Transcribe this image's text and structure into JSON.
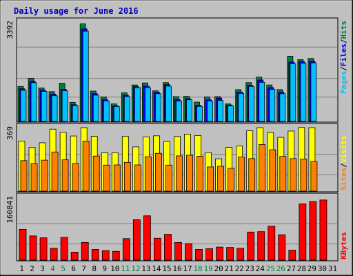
{
  "title": "Daily usage for June 2016",
  "colors": {
    "hits": "#008040",
    "files": "#0000ff",
    "pages": "#00c0ff",
    "visits": "#ffff00",
    "sites": "#ff8000",
    "kbytes": "#ff0000",
    "title": "#0000c0",
    "day_weekday": "#000000",
    "day_weekend": "#008040",
    "separator": "#000000"
  },
  "chart_data": [
    {
      "type": "bar",
      "panel": "hits-files-pages",
      "ymax_label": "3392",
      "ylim": [
        0,
        3392
      ],
      "legend": [
        "Pages",
        "Files",
        "Hits"
      ],
      "categories": [
        "1",
        "2",
        "3",
        "4",
        "5",
        "6",
        "7",
        "8",
        "9",
        "10",
        "11",
        "12",
        "13",
        "14",
        "15",
        "16",
        "17",
        "18",
        "19",
        "20",
        "21",
        "22",
        "23",
        "24",
        "25",
        "26",
        "27",
        "28",
        "29",
        "30",
        "31"
      ],
      "series": [
        {
          "name": "Hits",
          "values": [
            1180,
            1460,
            1130,
            1000,
            1290,
            630,
            3330,
            1020,
            820,
            580,
            960,
            1230,
            1300,
            1030,
            1310,
            830,
            840,
            640,
            820,
            830,
            580,
            1070,
            1310,
            1500,
            1230,
            1070,
            2220,
            2100,
            2140,
            0,
            0
          ]
        },
        {
          "name": "Files",
          "values": [
            1100,
            1360,
            1050,
            920,
            1080,
            550,
            3160,
            930,
            730,
            520,
            880,
            1170,
            1190,
            980,
            1240,
            730,
            760,
            530,
            720,
            780,
            540,
            990,
            1220,
            1400,
            1140,
            990,
            2020,
            2030,
            2050,
            0,
            0
          ]
        },
        {
          "name": "Pages",
          "values": [
            1050,
            1310,
            1010,
            860,
            1030,
            520,
            3080,
            880,
            680,
            490,
            830,
            1140,
            1140,
            930,
            1190,
            680,
            720,
            490,
            680,
            700,
            510,
            940,
            1180,
            1320,
            1080,
            930,
            1960,
            1980,
            1990,
            0,
            0
          ]
        }
      ]
    },
    {
      "type": "bar",
      "panel": "visits-sites",
      "ymax_label": "369",
      "ylim": [
        0,
        369
      ],
      "legend": [
        "Sites",
        "Visits"
      ],
      "categories": [
        "1",
        "2",
        "3",
        "4",
        "5",
        "6",
        "7",
        "8",
        "9",
        "10",
        "11",
        "12",
        "13",
        "14",
        "15",
        "16",
        "17",
        "18",
        "19",
        "20",
        "21",
        "22",
        "23",
        "24",
        "25",
        "26",
        "27",
        "28",
        "29",
        "30",
        "31"
      ],
      "series": [
        {
          "name": "Visits",
          "values": [
            290,
            252,
            280,
            360,
            342,
            320,
            369,
            318,
            221,
            221,
            317,
            256,
            315,
            321,
            288,
            317,
            331,
            323,
            222,
            186,
            253,
            261,
            351,
            369,
            341,
            312,
            349,
            370,
            369,
            0,
            0
          ]
        },
        {
          "name": "Sites",
          "values": [
            175,
            158,
            178,
            226,
            180,
            159,
            290,
            202,
            149,
            150,
            165,
            150,
            198,
            218,
            149,
            203,
            207,
            201,
            138,
            142,
            130,
            197,
            187,
            270,
            239,
            200,
            187,
            185,
            171,
            0,
            0
          ]
        }
      ]
    },
    {
      "type": "bar",
      "panel": "kbytes",
      "ymax_label": "160841",
      "ylim": [
        0,
        160841
      ],
      "legend": [
        "KBytes"
      ],
      "categories": [
        "1",
        "2",
        "3",
        "4",
        "5",
        "6",
        "7",
        "8",
        "9",
        "10",
        "11",
        "12",
        "13",
        "14",
        "15",
        "16",
        "17",
        "18",
        "19",
        "20",
        "21",
        "22",
        "23",
        "24",
        "25",
        "26",
        "27",
        "28",
        "29",
        "30",
        "31"
      ],
      "series": [
        {
          "name": "KBytes",
          "values": [
            78000,
            61000,
            56000,
            29000,
            57000,
            19000,
            44000,
            26000,
            23000,
            21000,
            54000,
            103000,
            113000,
            55000,
            65000,
            44000,
            41000,
            26000,
            28000,
            32000,
            31000,
            29000,
            71000,
            72000,
            86000,
            64000,
            24000,
            144000,
            150000,
            154000,
            0
          ]
        }
      ]
    }
  ],
  "weekend_days": [
    4,
    5,
    11,
    12,
    18,
    19,
    25,
    26
  ]
}
